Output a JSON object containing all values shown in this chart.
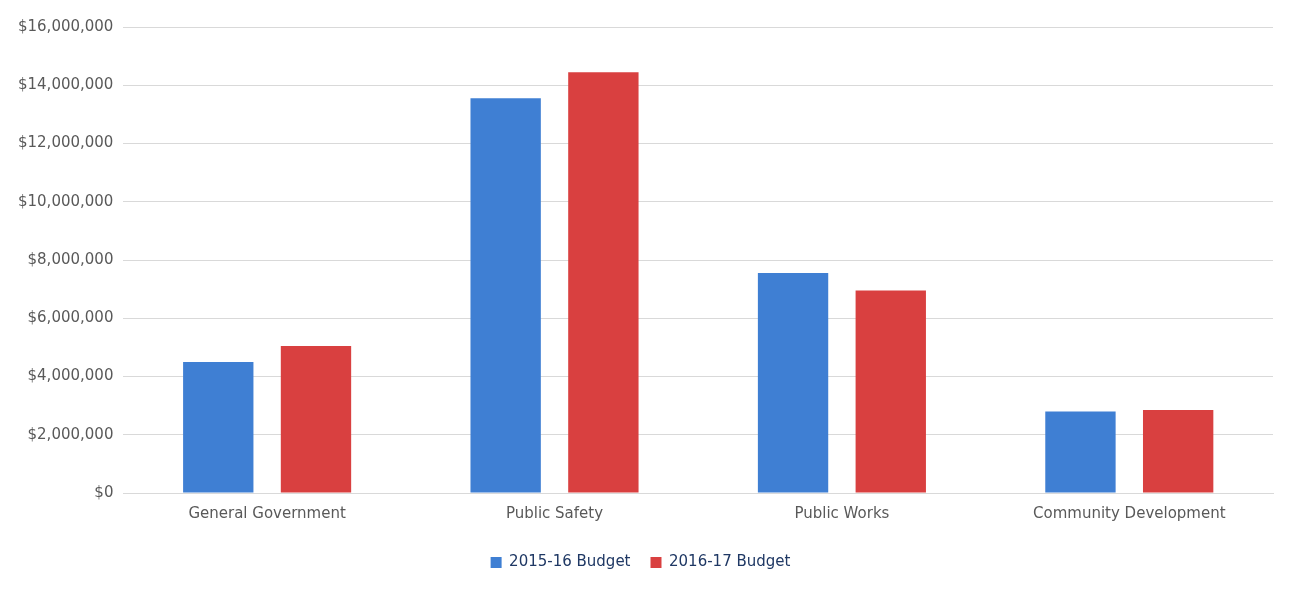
{
  "chart_data": {
    "type": "bar",
    "categories": [
      "General Government",
      "Public Safety",
      "Public Works",
      "Community Development"
    ],
    "series": [
      {
        "name": "2015-16 Budget",
        "color": "#3f7fd3",
        "values": [
          4500000,
          13550000,
          7550000,
          2800000
        ]
      },
      {
        "name": "2016-17 Budget",
        "color": "#d94040",
        "values": [
          5050000,
          14450000,
          6950000,
          2850000
        ]
      }
    ],
    "ylim": [
      0,
      16000000
    ],
    "yticks": [
      {
        "value": 0,
        "label": "$0"
      },
      {
        "value": 2000000,
        "label": "$2,000,000"
      },
      {
        "value": 4000000,
        "label": "$4,000,000"
      },
      {
        "value": 6000000,
        "label": "$6,000,000"
      },
      {
        "value": 8000000,
        "label": "$8,000,000"
      },
      {
        "value": 10000000,
        "label": "$10,000,000"
      },
      {
        "value": 12000000,
        "label": "$12,000,000"
      },
      {
        "value": 14000000,
        "label": "$14,000,000"
      },
      {
        "value": 16000000,
        "label": "$16,000,000"
      }
    ],
    "grid": "y",
    "legend": "bottom"
  }
}
